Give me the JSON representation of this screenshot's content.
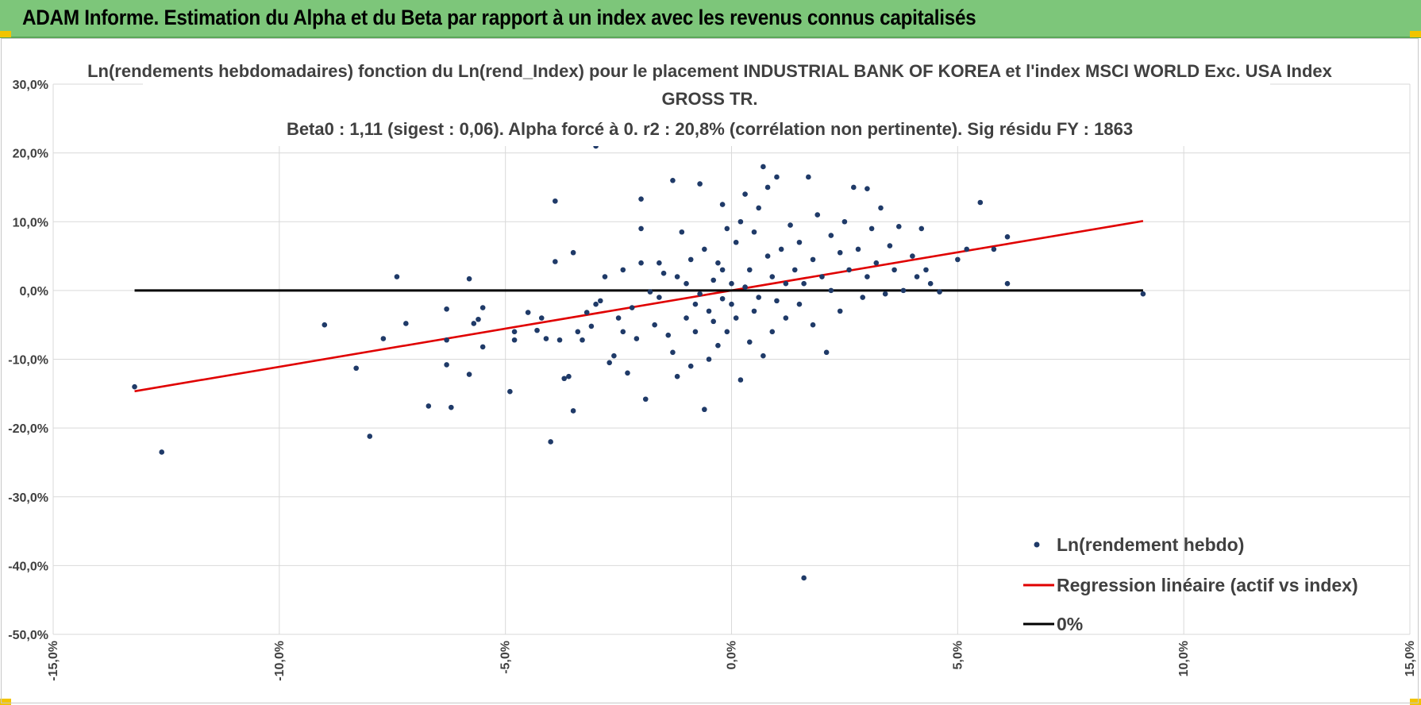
{
  "header": {
    "title": "ADAM Informe. Estimation du Alpha et du Beta par rapport à un index avec les revenus connus capitalisés"
  },
  "colors": {
    "banner": "#7dc67a",
    "points": "#1f3a68",
    "regression": "#e00000",
    "zero_line": "#000000",
    "grid": "#d9d9d9"
  },
  "chart_data": {
    "type": "scatter",
    "title_lines": [
      "Ln(rendements hebdomadaires) fonction du Ln(rend_Index) pour le placement INDUSTRIAL BANK OF KOREA et l'index MSCI WORLD Exc. USA Index",
      "GROSS TR.",
      "Beta0 : 1,11 (sigest : 0,06).  Alpha forcé à 0. r2 : 20,8% (corrélation non pertinente). Sig résidu FY : 1863"
    ],
    "xlim": [
      -0.15,
      0.15
    ],
    "ylim": [
      -0.5,
      0.3
    ],
    "x_ticks": [
      -0.15,
      -0.1,
      -0.05,
      0.0,
      0.05,
      0.1,
      0.15
    ],
    "x_tick_labels": [
      "-15,0%",
      "-10,0%",
      "-5,0%",
      "0,0%",
      "5,0%",
      "10,0%",
      "15,0%"
    ],
    "y_ticks": [
      0.3,
      0.2,
      0.1,
      0.0,
      -0.1,
      -0.2,
      -0.3,
      -0.4,
      -0.5
    ],
    "y_tick_labels": [
      "30,0%",
      "20,0%",
      "10,0%",
      "0,0%",
      "-10,0%",
      "-20,0%",
      "-30,0%",
      "-40,0%",
      "-50,0%"
    ],
    "grid": true,
    "legend_position": "bottom-right",
    "series": [
      {
        "name": "Ln(rendement hebdo)",
        "kind": "scatter",
        "points": [
          [
            -0.132,
            -0.14
          ],
          [
            -0.126,
            -0.235
          ],
          [
            -0.09,
            -0.05
          ],
          [
            -0.083,
            -0.113
          ],
          [
            -0.08,
            -0.212
          ],
          [
            -0.077,
            -0.07
          ],
          [
            -0.074,
            0.02
          ],
          [
            -0.072,
            -0.048
          ],
          [
            -0.067,
            -0.168
          ],
          [
            -0.063,
            -0.027
          ],
          [
            -0.063,
            -0.108
          ],
          [
            -0.063,
            -0.072
          ],
          [
            -0.062,
            -0.17
          ],
          [
            -0.058,
            0.017
          ],
          [
            -0.058,
            -0.122
          ],
          [
            -0.057,
            -0.048
          ],
          [
            -0.056,
            -0.042
          ],
          [
            -0.055,
            -0.082
          ],
          [
            -0.055,
            -0.025
          ],
          [
            -0.049,
            -0.147
          ],
          [
            -0.048,
            -0.06
          ],
          [
            -0.048,
            -0.072
          ],
          [
            -0.045,
            -0.032
          ],
          [
            -0.043,
            -0.058
          ],
          [
            -0.042,
            -0.04
          ],
          [
            -0.041,
            -0.07
          ],
          [
            -0.04,
            -0.22
          ],
          [
            -0.039,
            0.042
          ],
          [
            -0.039,
            0.13
          ],
          [
            -0.038,
            -0.072
          ],
          [
            -0.037,
            -0.128
          ],
          [
            -0.036,
            -0.125
          ],
          [
            -0.035,
            -0.175
          ],
          [
            -0.035,
            0.055
          ],
          [
            -0.034,
            -0.06
          ],
          [
            -0.033,
            -0.072
          ],
          [
            -0.032,
            -0.032
          ],
          [
            -0.031,
            -0.052
          ],
          [
            -0.03,
            -0.02
          ],
          [
            -0.029,
            -0.015
          ],
          [
            -0.028,
            0.02
          ],
          [
            -0.03,
            0.21
          ],
          [
            -0.027,
            -0.105
          ],
          [
            -0.026,
            -0.095
          ],
          [
            -0.025,
            -0.04
          ],
          [
            -0.024,
            -0.06
          ],
          [
            -0.024,
            0.03
          ],
          [
            -0.023,
            -0.12
          ],
          [
            -0.022,
            -0.025
          ],
          [
            -0.021,
            -0.07
          ],
          [
            -0.02,
            0.09
          ],
          [
            -0.02,
            0.133
          ],
          [
            -0.02,
            0.04
          ],
          [
            -0.019,
            -0.158
          ],
          [
            -0.018,
            -0.002
          ],
          [
            -0.017,
            -0.05
          ],
          [
            -0.016,
            0.04
          ],
          [
            -0.016,
            -0.01
          ],
          [
            -0.015,
            0.025
          ],
          [
            -0.014,
            -0.065
          ],
          [
            -0.013,
            0.16
          ],
          [
            -0.013,
            -0.09
          ],
          [
            -0.012,
            0.02
          ],
          [
            -0.012,
            -0.125
          ],
          [
            -0.011,
            0.085
          ],
          [
            -0.01,
            -0.04
          ],
          [
            -0.01,
            0.01
          ],
          [
            -0.009,
            -0.11
          ],
          [
            -0.009,
            0.045
          ],
          [
            -0.008,
            -0.02
          ],
          [
            -0.008,
            -0.06
          ],
          [
            -0.007,
            0.155
          ],
          [
            -0.007,
            -0.005
          ],
          [
            -0.006,
            -0.173
          ],
          [
            -0.006,
            0.06
          ],
          [
            -0.005,
            -0.03
          ],
          [
            -0.005,
            -0.1
          ],
          [
            -0.004,
            0.015
          ],
          [
            -0.004,
            -0.045
          ],
          [
            -0.003,
            0.04
          ],
          [
            -0.003,
            -0.08
          ],
          [
            -0.002,
            0.125
          ],
          [
            -0.002,
            -0.012
          ],
          [
            -0.002,
            0.03
          ],
          [
            -0.001,
            -0.06
          ],
          [
            -0.001,
            0.09
          ],
          [
            0.0,
            -0.02
          ],
          [
            0.0,
            0.01
          ],
          [
            0.001,
            0.07
          ],
          [
            0.001,
            -0.04
          ],
          [
            0.002,
            0.1
          ],
          [
            0.002,
            -0.13
          ],
          [
            0.003,
            0.005
          ],
          [
            0.003,
            0.14
          ],
          [
            0.004,
            -0.075
          ],
          [
            0.004,
            0.03
          ],
          [
            0.005,
            -0.03
          ],
          [
            0.005,
            0.085
          ],
          [
            0.006,
            0.12
          ],
          [
            0.006,
            -0.01
          ],
          [
            0.007,
            0.18
          ],
          [
            0.007,
            -0.095
          ],
          [
            0.008,
            0.05
          ],
          [
            0.008,
            0.15
          ],
          [
            0.009,
            0.02
          ],
          [
            0.009,
            -0.06
          ],
          [
            0.01,
            0.165
          ],
          [
            0.01,
            -0.015
          ],
          [
            0.011,
            0.06
          ],
          [
            0.012,
            0.01
          ],
          [
            0.012,
            -0.04
          ],
          [
            0.013,
            0.095
          ],
          [
            0.014,
            0.03
          ],
          [
            0.015,
            0.07
          ],
          [
            0.015,
            -0.02
          ],
          [
            0.016,
            0.01
          ],
          [
            0.016,
            -0.418
          ],
          [
            0.017,
            0.165
          ],
          [
            0.018,
            0.045
          ],
          [
            0.018,
            -0.05
          ],
          [
            0.019,
            0.11
          ],
          [
            0.02,
            0.02
          ],
          [
            0.021,
            -0.09
          ],
          [
            0.022,
            0.08
          ],
          [
            0.022,
            0.0
          ],
          [
            0.024,
            0.055
          ],
          [
            0.024,
            -0.03
          ],
          [
            0.025,
            0.1
          ],
          [
            0.026,
            0.03
          ],
          [
            0.027,
            0.15
          ],
          [
            0.028,
            0.06
          ],
          [
            0.029,
            -0.01
          ],
          [
            0.03,
            0.148
          ],
          [
            0.03,
            0.02
          ],
          [
            0.031,
            0.09
          ],
          [
            0.032,
            0.04
          ],
          [
            0.033,
            0.12
          ],
          [
            0.034,
            -0.005
          ],
          [
            0.035,
            0.065
          ],
          [
            0.036,
            0.03
          ],
          [
            0.037,
            0.093
          ],
          [
            0.038,
            0.0
          ],
          [
            0.04,
            0.05
          ],
          [
            0.041,
            0.02
          ],
          [
            0.042,
            0.09
          ],
          [
            0.043,
            0.03
          ],
          [
            0.044,
            0.01
          ],
          [
            0.046,
            -0.002
          ],
          [
            0.05,
            0.045
          ],
          [
            0.052,
            0.06
          ],
          [
            0.055,
            0.128
          ],
          [
            0.058,
            0.06
          ],
          [
            0.061,
            0.01
          ],
          [
            0.061,
            0.078
          ],
          [
            0.091,
            -0.005
          ]
        ]
      },
      {
        "name": "Regression linéaire (actif vs index)",
        "kind": "line",
        "x": [
          -0.132,
          0.091
        ],
        "y": [
          -0.1465,
          0.101
        ]
      },
      {
        "name": "0%",
        "kind": "line",
        "x": [
          -0.132,
          0.091
        ],
        "y": [
          0.0,
          0.0
        ]
      }
    ]
  }
}
